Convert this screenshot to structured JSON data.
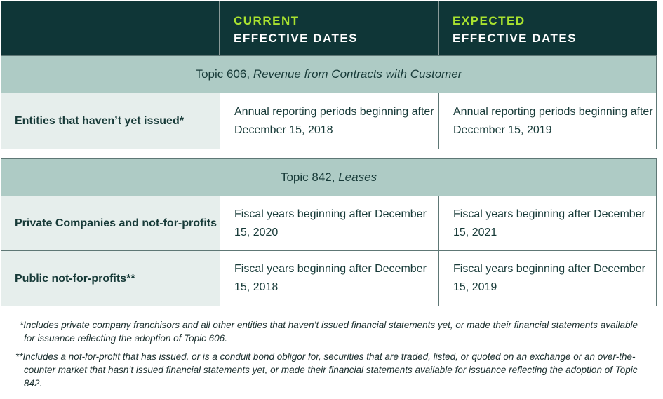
{
  "header": {
    "current_line1": "CURRENT",
    "current_line2": "EFFECTIVE DATES",
    "expected_line1": "EXPECTED",
    "expected_line2": "EFFECTIVE DATES"
  },
  "sections": [
    {
      "topic": "Topic 606,",
      "topic_name": "Revenue from Contracts with Customer",
      "rows": [
        {
          "label": "Entities that haven’t yet issued*",
          "current": "Annual reporting periods beginning after December 15, 2018",
          "expected": "Annual reporting periods beginning after December 15, 2019"
        }
      ]
    },
    {
      "topic": "Topic 842,",
      "topic_name": "Leases",
      "rows": [
        {
          "label": "Private Companies and not-for-profits",
          "current": "Fiscal years beginning after December 15, 2020",
          "expected": "Fiscal years beginning after December 15, 2021"
        },
        {
          "label": "Public not-for-profits**",
          "current": "Fiscal years beginning after December 15, 2018",
          "expected": "Fiscal years beginning after December 15, 2019"
        }
      ]
    }
  ],
  "footnotes": [
    "*Includes private company franchisors and all other entities that haven’t issued financial statements yet, or made their financial statements available for issuance reflecting the adoption of Topic 606.",
    "**Includes a not-for-profit that has issued, or is a conduit bond obligor for, securities that are traded, listed, or quoted on an exchange or an over-the-counter market that hasn’t issued financial statements yet, or made their financial statements available for issuance reflecting the adoption of Topic 842."
  ],
  "colors": {
    "header_bg": "#0f3637",
    "accent": "#a9e22f",
    "band_bg": "#aecbc5",
    "label_bg": "#e6eeec"
  }
}
